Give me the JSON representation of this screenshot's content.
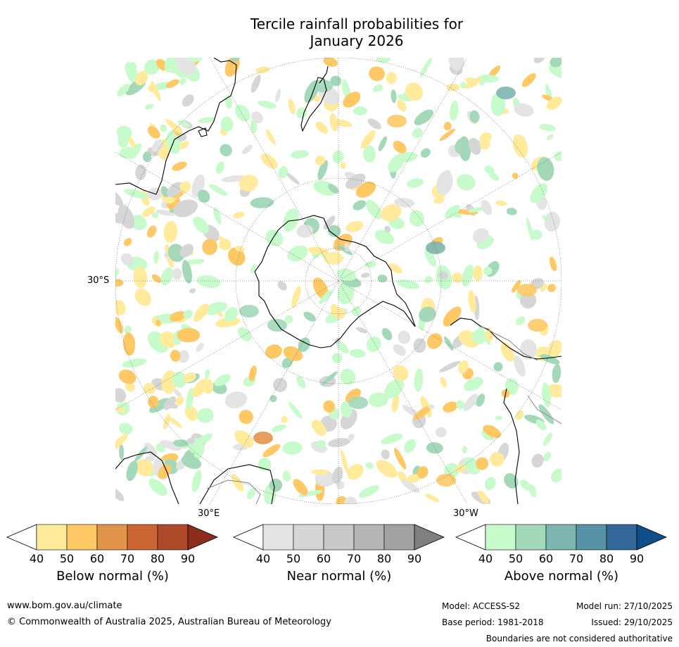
{
  "title": {
    "line1": "Tercile rainfall probabilities for",
    "line2": "January 2026"
  },
  "map": {
    "labels": {
      "lat": "30°S",
      "lon_east": "30°E",
      "lon_west": "30°W"
    },
    "colors": {
      "below": [
        "#ffffff",
        "#ffeb9b",
        "#fec965",
        "#e2944a",
        "#cb6634",
        "#ad4a2a",
        "#8c2d1b"
      ],
      "near": [
        "#ffffff",
        "#e4e4e4",
        "#d6d6d6",
        "#c8c8c8",
        "#b5b5b5",
        "#a2a2a2",
        "#7f7f7f"
      ],
      "above": [
        "#ffffff",
        "#c8fbcb",
        "#a3d8b9",
        "#7db5b0",
        "#5793a6",
        "#336699",
        "#114e87"
      ]
    }
  },
  "colorbars": [
    {
      "key": "below",
      "title": "Below normal (%)",
      "ticks": [
        "40",
        "50",
        "60",
        "70",
        "80",
        "90"
      ]
    },
    {
      "key": "near",
      "title": "Near normal (%)",
      "ticks": [
        "40",
        "50",
        "60",
        "70",
        "80",
        "90"
      ]
    },
    {
      "key": "above",
      "title": "Above normal (%)",
      "ticks": [
        "40",
        "50",
        "60",
        "70",
        "80",
        "90"
      ]
    }
  ],
  "footer": {
    "website": "www.bom.gov.au/climate",
    "copyright": "© Commonwealth of Australia 2025, Australian Bureau of Meteorology",
    "model": "Model: ACCESS-S2",
    "base_period": "Base period: 1981-2018",
    "model_run": "Model run: 27/10/2025",
    "issued": "Issued: 29/10/2025",
    "disclaimer": "Boundaries are not considered authoritative"
  }
}
